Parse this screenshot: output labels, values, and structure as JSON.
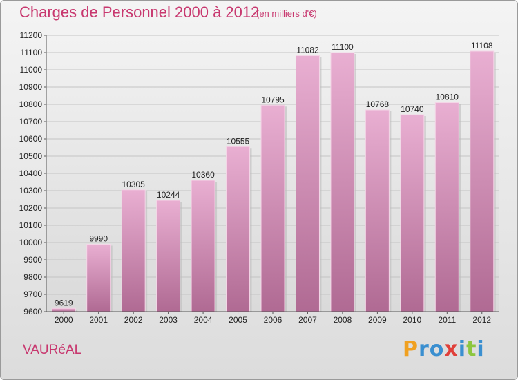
{
  "title": "Charges de Personnel 2000 à 2012",
  "subtitle": "(en milliers d'€)",
  "commune": "VAURéAL",
  "logo": {
    "letters": [
      {
        "ch": "P",
        "color": "#f0a020"
      },
      {
        "ch": "r",
        "color": "#3a8fd0"
      },
      {
        "ch": "o",
        "color": "#3a8fd0"
      },
      {
        "ch": "x",
        "color": "#e0403a"
      },
      {
        "ch": "i",
        "color": "#3a8fd0"
      },
      {
        "ch": "t",
        "color": "#8cc63f"
      },
      {
        "ch": "i",
        "color": "#3a8fd0"
      }
    ]
  },
  "colors": {
    "accent": "#c8386f",
    "bar_top": "#e9afd2",
    "bar_bottom": "#b06a93"
  },
  "chart_data": {
    "type": "bar",
    "categories": [
      "2000",
      "2001",
      "2002",
      "2003",
      "2004",
      "2005",
      "2006",
      "2007",
      "2008",
      "2009",
      "2010",
      "2011",
      "2012"
    ],
    "values": [
      9619,
      9990,
      10305,
      10244,
      10360,
      10555,
      10795,
      11082,
      11100,
      10768,
      10740,
      10810,
      11108
    ],
    "ylim": [
      9600,
      11200
    ],
    "yticks": [
      9600,
      9700,
      9800,
      9900,
      10000,
      10100,
      10200,
      10300,
      10400,
      10500,
      10600,
      10700,
      10800,
      10900,
      11000,
      11100,
      11200
    ],
    "grid": true
  }
}
